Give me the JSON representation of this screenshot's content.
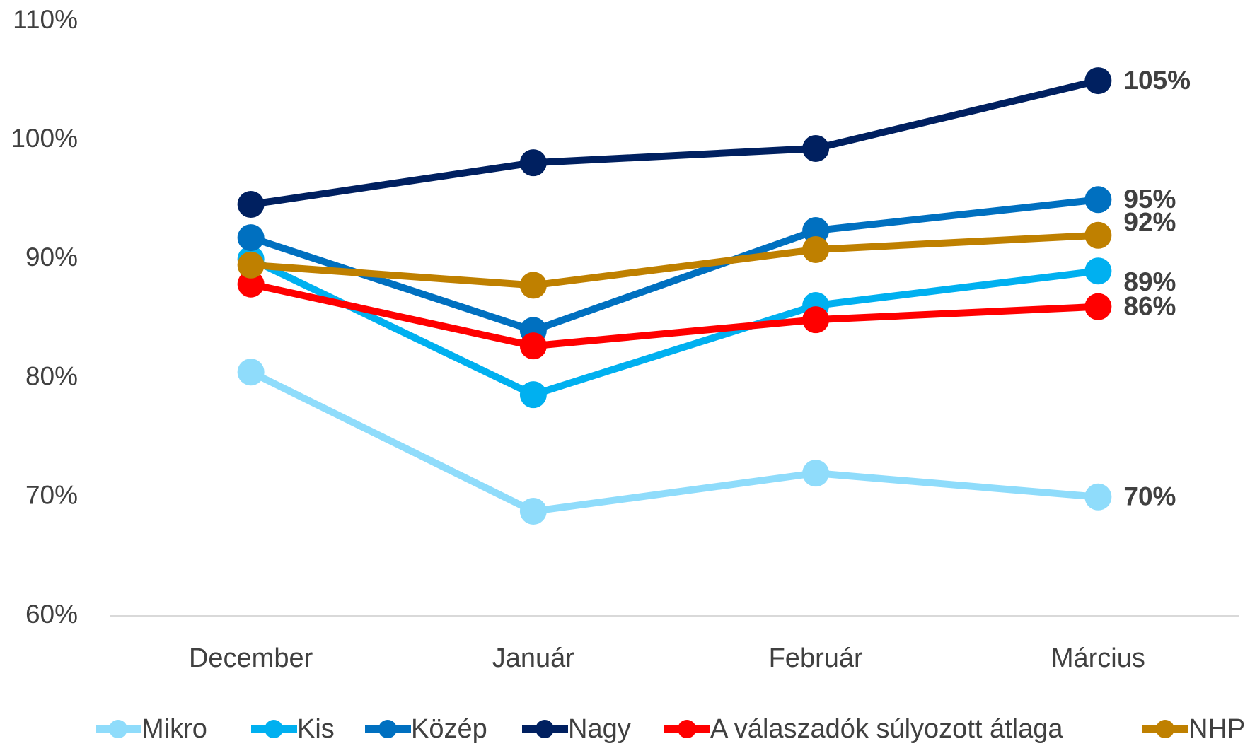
{
  "chart_data": {
    "type": "line",
    "categories": [
      "December",
      "Január",
      "Február",
      "Március"
    ],
    "series": [
      {
        "name": "Mikro",
        "color": "#8fdcfb",
        "values": [
          80.5,
          68.8,
          72.0,
          70
        ],
        "value_labels": [
          null,
          null,
          null,
          "70%"
        ]
      },
      {
        "name": "Kis",
        "color": "#00b0f0",
        "values": [
          90.0,
          78.6,
          86.1,
          89
        ],
        "value_labels": [
          null,
          null,
          null,
          "89%"
        ]
      },
      {
        "name": "Közép",
        "color": "#0070c0",
        "values": [
          91.8,
          84.0,
          92.4,
          95
        ],
        "value_labels": [
          null,
          null,
          null,
          "95%"
        ]
      },
      {
        "name": "Nagy",
        "color": "#002060",
        "values": [
          94.6,
          98.1,
          99.3,
          105
        ],
        "value_labels": [
          null,
          null,
          null,
          "105%"
        ]
      },
      {
        "name": "A válaszadók súlyozott átlaga",
        "color": "#ff0000",
        "values": [
          87.9,
          82.7,
          84.9,
          86
        ],
        "value_labels": [
          null,
          null,
          null,
          "86%"
        ]
      },
      {
        "name": "NHP",
        "color": "#bf8000",
        "values": [
          89.5,
          87.8,
          90.8,
          92
        ],
        "value_labels": [
          null,
          null,
          null,
          "92%"
        ]
      }
    ],
    "ylim": [
      60,
      110
    ],
    "yticks": [
      {
        "value": 60,
        "label": "60%"
      },
      {
        "value": 70,
        "label": "70%"
      },
      {
        "value": 80,
        "label": "80%"
      },
      {
        "value": 90,
        "label": "90%"
      },
      {
        "value": 100,
        "label": "100%"
      },
      {
        "value": 110,
        "label": "110%"
      }
    ],
    "grid": false,
    "legend": "bottom"
  }
}
